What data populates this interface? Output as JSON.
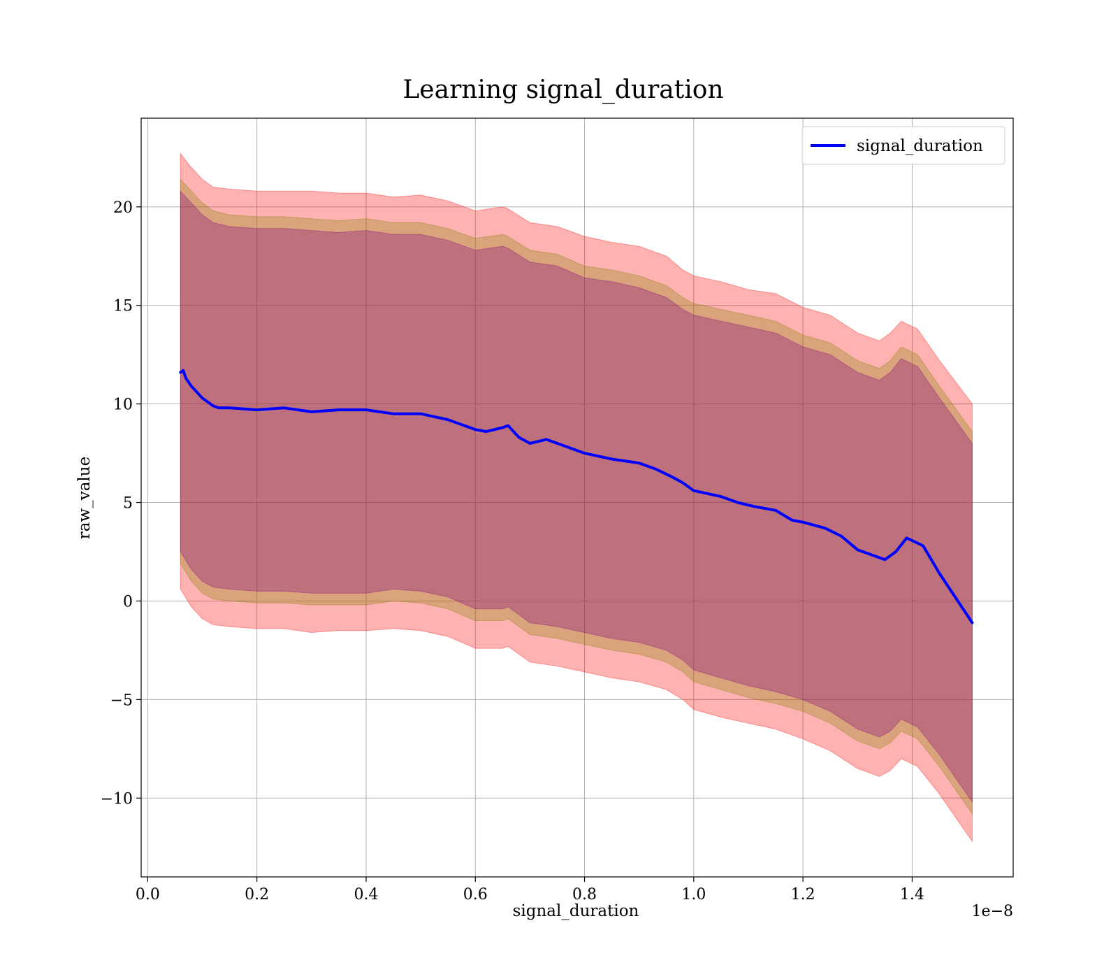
{
  "chart_data": {
    "type": "line",
    "title": "Learning signal_duration",
    "xlabel": "signal_duration",
    "ylabel": "raw_value",
    "x_offset_label": "1e−8",
    "xlim": [
      -0.012,
      1.585
    ],
    "ylim": [
      -14.0,
      24.5
    ],
    "x_ticks": [
      0.0,
      0.2,
      0.4,
      0.6,
      0.8,
      1.0,
      1.2,
      1.4
    ],
    "x_tick_labels": [
      "0.0",
      "0.2",
      "0.4",
      "0.6",
      "0.8",
      "1.0",
      "1.2",
      "1.4"
    ],
    "y_ticks": [
      -10,
      -5,
      0,
      5,
      10,
      15,
      20
    ],
    "y_tick_labels": [
      "−10",
      "−5",
      "0",
      "5",
      "10",
      "15",
      "20"
    ],
    "grid": true,
    "legend": {
      "position": "top-right",
      "entries": [
        "signal_duration"
      ]
    },
    "series": [
      {
        "name": "signal_duration",
        "color": "#0000ff",
        "x": [
          0.06,
          0.065,
          0.07,
          0.08,
          0.09,
          0.1,
          0.11,
          0.12,
          0.13,
          0.14,
          0.15,
          0.2,
          0.25,
          0.3,
          0.35,
          0.4,
          0.45,
          0.5,
          0.55,
          0.6,
          0.62,
          0.65,
          0.66,
          0.68,
          0.7,
          0.73,
          0.76,
          0.8,
          0.85,
          0.9,
          0.93,
          0.96,
          0.98,
          1.0,
          1.05,
          1.08,
          1.11,
          1.15,
          1.18,
          1.2,
          1.24,
          1.27,
          1.3,
          1.35,
          1.37,
          1.39,
          1.42,
          1.45,
          1.51
        ],
        "y": [
          11.6,
          11.7,
          11.3,
          10.9,
          10.6,
          10.3,
          10.1,
          9.9,
          9.8,
          9.8,
          9.8,
          9.7,
          9.8,
          9.6,
          9.7,
          9.7,
          9.5,
          9.5,
          9.2,
          8.7,
          8.6,
          8.8,
          8.9,
          8.3,
          8.0,
          8.2,
          7.9,
          7.5,
          7.2,
          7.0,
          6.7,
          6.3,
          6.0,
          5.6,
          5.3,
          5.0,
          4.8,
          4.6,
          4.1,
          4.0,
          3.7,
          3.3,
          2.6,
          2.1,
          2.5,
          3.2,
          2.8,
          1.4,
          -1.1
        ]
      }
    ],
    "bands": [
      {
        "color": "#ff0000",
        "opacity": 0.3,
        "x": [
          0.06,
          0.08,
          0.1,
          0.12,
          0.15,
          0.2,
          0.25,
          0.3,
          0.35,
          0.4,
          0.45,
          0.5,
          0.55,
          0.6,
          0.65,
          0.66,
          0.7,
          0.75,
          0.8,
          0.85,
          0.9,
          0.95,
          0.98,
          1.0,
          1.05,
          1.1,
          1.15,
          1.2,
          1.25,
          1.3,
          1.34,
          1.36,
          1.38,
          1.41,
          1.45,
          1.51
        ],
        "upper": [
          22.7,
          22.0,
          21.4,
          21.0,
          20.9,
          20.8,
          20.8,
          20.8,
          20.7,
          20.7,
          20.5,
          20.6,
          20.3,
          19.8,
          20.0,
          19.9,
          19.2,
          19.0,
          18.5,
          18.2,
          18.0,
          17.5,
          16.8,
          16.5,
          16.2,
          15.8,
          15.6,
          14.9,
          14.5,
          13.6,
          13.2,
          13.6,
          14.2,
          13.8,
          12.2,
          10.0
        ],
        "lower": [
          0.6,
          -0.3,
          -0.9,
          -1.2,
          -1.3,
          -1.4,
          -1.4,
          -1.6,
          -1.5,
          -1.5,
          -1.4,
          -1.5,
          -1.8,
          -2.4,
          -2.4,
          -2.3,
          -3.1,
          -3.3,
          -3.6,
          -3.9,
          -4.1,
          -4.5,
          -5.0,
          -5.5,
          -5.9,
          -6.2,
          -6.5,
          -7.0,
          -7.6,
          -8.5,
          -8.9,
          -8.6,
          -8.0,
          -8.4,
          -9.8,
          -12.2
        ]
      },
      {
        "color": "#808000",
        "opacity": 0.3,
        "x": [
          0.06,
          0.08,
          0.1,
          0.12,
          0.15,
          0.2,
          0.25,
          0.3,
          0.35,
          0.4,
          0.45,
          0.5,
          0.55,
          0.6,
          0.65,
          0.66,
          0.7,
          0.75,
          0.8,
          0.85,
          0.9,
          0.95,
          0.98,
          1.0,
          1.05,
          1.1,
          1.15,
          1.2,
          1.25,
          1.3,
          1.34,
          1.36,
          1.38,
          1.41,
          1.45,
          1.51
        ],
        "upper": [
          21.4,
          20.8,
          20.2,
          19.8,
          19.6,
          19.5,
          19.5,
          19.4,
          19.3,
          19.4,
          19.2,
          19.2,
          18.9,
          18.4,
          18.6,
          18.5,
          17.8,
          17.6,
          17.0,
          16.8,
          16.5,
          16.0,
          15.4,
          15.1,
          14.8,
          14.5,
          14.2,
          13.5,
          13.1,
          12.2,
          11.8,
          12.2,
          12.9,
          12.5,
          10.9,
          8.6
        ],
        "lower": [
          1.9,
          1.0,
          0.4,
          0.1,
          0.0,
          -0.1,
          -0.1,
          -0.2,
          -0.2,
          -0.2,
          0.0,
          -0.1,
          -0.4,
          -1.0,
          -1.0,
          -0.9,
          -1.7,
          -1.9,
          -2.2,
          -2.5,
          -2.7,
          -3.1,
          -3.6,
          -4.1,
          -4.5,
          -4.9,
          -5.2,
          -5.6,
          -6.2,
          -7.1,
          -7.5,
          -7.2,
          -6.6,
          -7.0,
          -8.4,
          -10.8
        ]
      },
      {
        "color": "#800080",
        "opacity": 0.3,
        "x": [
          0.06,
          0.08,
          0.1,
          0.12,
          0.15,
          0.2,
          0.25,
          0.3,
          0.35,
          0.4,
          0.45,
          0.5,
          0.55,
          0.6,
          0.65,
          0.66,
          0.7,
          0.75,
          0.8,
          0.85,
          0.9,
          0.95,
          0.98,
          1.0,
          1.05,
          1.1,
          1.15,
          1.2,
          1.25,
          1.3,
          1.34,
          1.36,
          1.38,
          1.41,
          1.45,
          1.51
        ],
        "upper": [
          20.8,
          20.2,
          19.6,
          19.2,
          19.0,
          18.9,
          18.9,
          18.8,
          18.7,
          18.8,
          18.6,
          18.6,
          18.3,
          17.8,
          18.0,
          17.9,
          17.2,
          17.0,
          16.4,
          16.2,
          15.9,
          15.4,
          14.8,
          14.5,
          14.2,
          13.9,
          13.6,
          12.9,
          12.5,
          11.6,
          11.2,
          11.6,
          12.3,
          11.9,
          10.3,
          8.0
        ],
        "lower": [
          2.5,
          1.6,
          1.0,
          0.7,
          0.6,
          0.5,
          0.5,
          0.4,
          0.4,
          0.4,
          0.6,
          0.5,
          0.2,
          -0.4,
          -0.4,
          -0.3,
          -1.1,
          -1.3,
          -1.6,
          -1.9,
          -2.1,
          -2.5,
          -3.0,
          -3.5,
          -3.9,
          -4.3,
          -4.6,
          -5.0,
          -5.6,
          -6.5,
          -6.9,
          -6.6,
          -6.0,
          -6.4,
          -7.8,
          -10.2
        ]
      }
    ]
  }
}
